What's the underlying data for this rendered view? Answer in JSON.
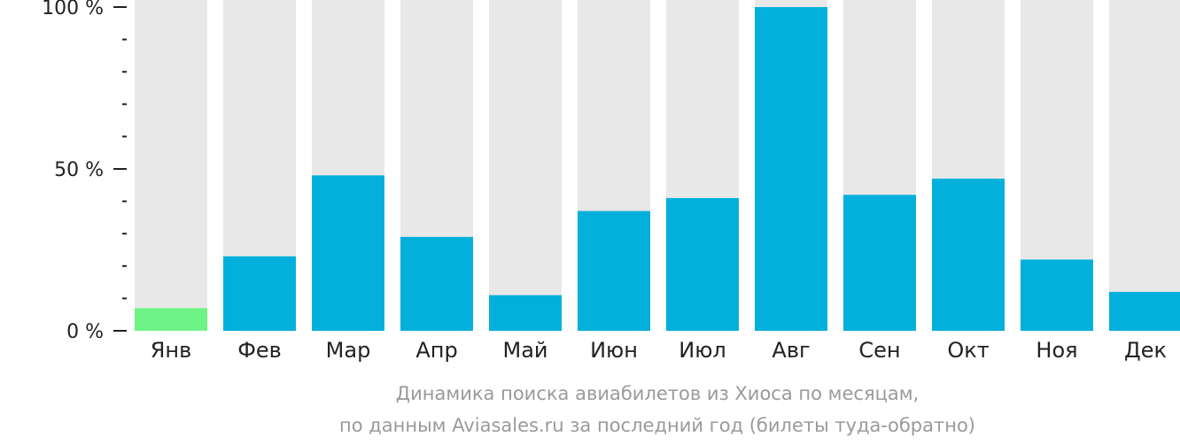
{
  "chart_data": {
    "type": "bar",
    "categories": [
      "Янв",
      "Фев",
      "Мар",
      "Апр",
      "Май",
      "Июн",
      "Июл",
      "Авг",
      "Сен",
      "Окт",
      "Ноя",
      "Дек"
    ],
    "values": [
      7,
      23,
      48,
      29,
      11,
      37,
      41,
      100,
      42,
      47,
      22,
      12
    ],
    "ylim": [
      0,
      100
    ],
    "yticks": [
      {
        "value": 0,
        "label": "0 %"
      },
      {
        "value": 50,
        "label": "50 %"
      },
      {
        "value": 100,
        "label": "100 %"
      }
    ],
    "minor_tick_step": 10,
    "subtitle_lines": [
      "Динамика поиска авиабилетов из Хиоса по месяцам,",
      "по данным Aviasales.ru за последний год (билеты туда-обратно)"
    ],
    "highlight_index": 0,
    "colors": {
      "bar": "#03b0dc",
      "highlight": "#6ef486",
      "background_bar": "#e8e8e8",
      "axis": "#222222",
      "text": "#222222",
      "caption": "#9a9a9a"
    }
  }
}
